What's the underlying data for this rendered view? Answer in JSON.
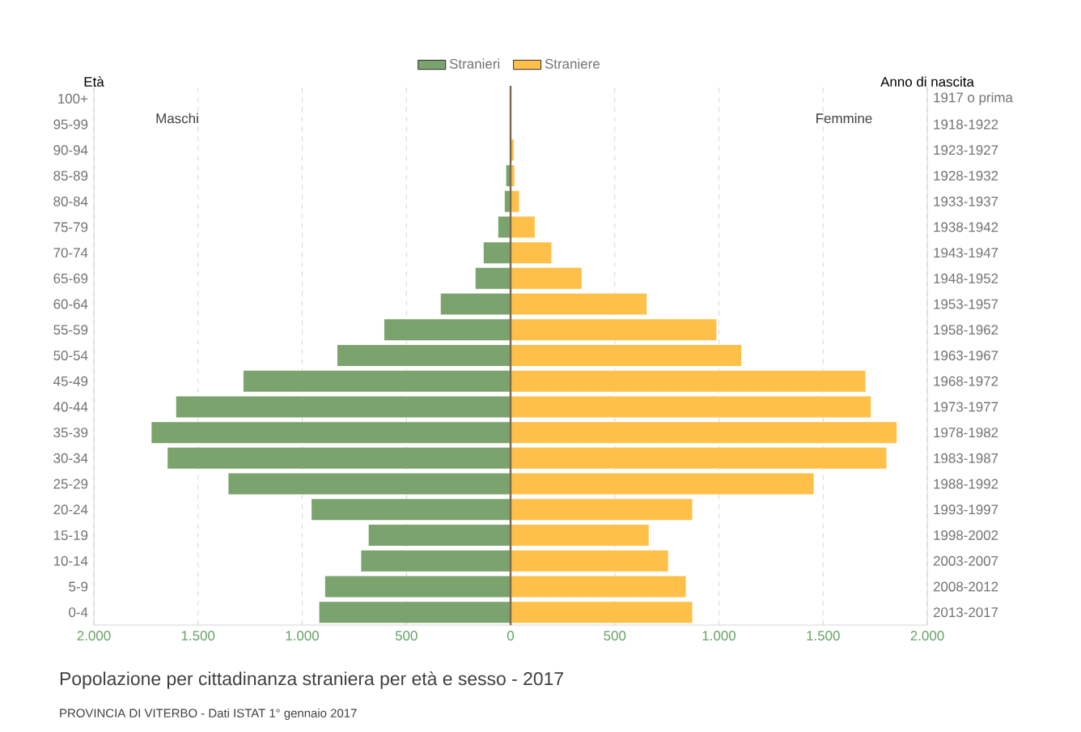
{
  "chart_data": {
    "type": "bar",
    "orientation": "horizontal",
    "stacked": true,
    "title": "Popolazione per cittadinanza straniera per età e sesso - 2017",
    "ylabel": "Età",
    "y2label": "Anno di nascita",
    "categories": [
      "100+",
      "95-99",
      "90-94",
      "85-89",
      "80-84",
      "75-79",
      "70-74",
      "65-69",
      "60-64",
      "55-59",
      "50-54",
      "45-49",
      "40-44",
      "35-39",
      "30-34",
      "25-29",
      "20-24",
      "15-19",
      "10-14",
      "5-9",
      "0-4"
    ],
    "y2_categories": [
      "1917 o prima",
      "1918-1922",
      "1923-1927",
      "1928-1932",
      "1933-1937",
      "1938-1942",
      "1943-1947",
      "1948-1952",
      "1953-1957",
      "1958-1962",
      "1963-1967",
      "1968-1972",
      "1973-1977",
      "1978-1982",
      "1983-1987",
      "1988-1992",
      "1993-1997",
      "1998-2002",
      "2003-2007",
      "2008-2012",
      "2013-2017"
    ],
    "series": [
      {
        "name": "Stranieri",
        "color": "#7ba36e",
        "values": [
          0,
          0,
          -2,
          -21,
          -28,
          -59,
          -129,
          -168,
          -335,
          -606,
          -831,
          -1282,
          -1605,
          -1723,
          -1646,
          -1354,
          -955,
          -681,
          -717,
          -890,
          -918
        ]
      },
      {
        "name": "Straniere",
        "color": "#ffc04a",
        "values": [
          0,
          0,
          15,
          18,
          41,
          116,
          196,
          341,
          653,
          988,
          1107,
          1703,
          1729,
          1853,
          1804,
          1455,
          872,
          663,
          756,
          841,
          872
        ]
      }
    ],
    "xlim": [
      -2000,
      2000
    ],
    "xticks": [
      {
        "value": -2000,
        "label": "2.000"
      },
      {
        "value": -1500,
        "label": "1.500"
      },
      {
        "value": -1000,
        "label": "1.000"
      },
      {
        "value": -500,
        "label": "500"
      },
      0,
      500,
      {
        "value": 1000,
        "label": "1.000"
      },
      {
        "value": 1500,
        "label": "1.500"
      },
      {
        "value": 2000,
        "label": "2.000"
      }
    ],
    "ref_lines": [
      {
        "axis": "x",
        "value": 0,
        "color": "#7b6a50"
      }
    ],
    "grid": "x",
    "legend": "top",
    "annotations": [
      "Maschi",
      "Femmine",
      "PROVINCIA DI VITERBO - Dati ISTAT 1° gennaio 2017"
    ]
  }
}
